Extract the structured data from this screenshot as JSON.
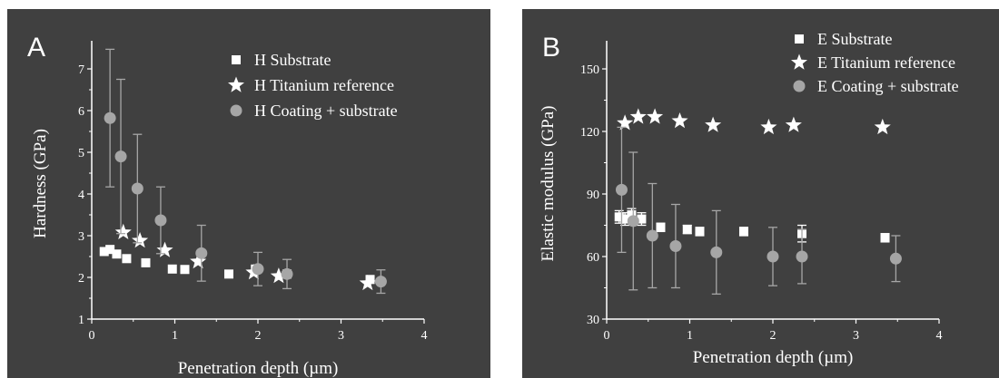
{
  "chart_data": [
    {
      "type": "scatter",
      "panel_label": "A",
      "xlabel": "Penetration depth (µm)",
      "ylabel": "Hardness (GPa)",
      "xlim": [
        0,
        4
      ],
      "ylim": [
        1,
        7.5
      ],
      "xticks": [
        0,
        1,
        2,
        3,
        4
      ],
      "yticks": [
        1,
        2,
        3,
        4,
        5,
        6,
        7
      ],
      "legend_position": "top-right",
      "grid": false,
      "colors": {
        "background": "#404040",
        "axes": "#ffffff",
        "substrate": "#ffffff",
        "titanium": "#ffffff",
        "coating": "#a6a6a6",
        "text": "#ffffff"
      },
      "series": [
        {
          "name": "H  Substrate",
          "marker": "square",
          "x": [
            0.15,
            0.22,
            0.3,
            0.42,
            0.65,
            0.97,
            1.12,
            1.65,
            1.97,
            2.35,
            3.35
          ],
          "y": [
            2.62,
            2.67,
            2.56,
            2.45,
            2.35,
            2.2,
            2.19,
            2.08,
            2.2,
            2.08,
            1.95
          ]
        },
        {
          "name": "H  Titanium reference",
          "marker": "star",
          "x": [
            0.38,
            0.58,
            0.88,
            1.28,
            1.95,
            2.25,
            3.32
          ],
          "y": [
            3.08,
            2.88,
            2.65,
            2.38,
            2.12,
            2.03,
            1.86
          ]
        },
        {
          "name": "H  Coating + substrate",
          "marker": "circle",
          "x": [
            0.22,
            0.35,
            0.55,
            0.83,
            1.32,
            2.0,
            2.35,
            3.48
          ],
          "y": [
            5.82,
            4.9,
            4.13,
            3.37,
            2.58,
            2.2,
            2.08,
            1.9
          ],
          "yerr": [
            1.65,
            1.85,
            1.3,
            0.8,
            0.67,
            0.4,
            0.35,
            0.28
          ]
        }
      ]
    },
    {
      "type": "scatter",
      "panel_label": "B",
      "xlabel": "Penetration depth (µm)",
      "ylabel": "Elastic modulus (GPa)",
      "xlim": [
        0,
        4
      ],
      "ylim": [
        30,
        160
      ],
      "xticks": [
        0,
        1,
        2,
        3,
        4
      ],
      "yticks": [
        30,
        60,
        90,
        120,
        150
      ],
      "legend_position": "top-right",
      "grid": false,
      "colors": {
        "background": "#404040",
        "axes": "#ffffff",
        "substrate": "#ffffff",
        "titanium": "#ffffff",
        "coating": "#a6a6a6",
        "text": "#ffffff"
      },
      "series": [
        {
          "name": "E Substrate",
          "marker": "square",
          "x": [
            0.15,
            0.22,
            0.3,
            0.42,
            0.65,
            0.97,
            1.12,
            1.65,
            2.35,
            3.35
          ],
          "y": [
            79,
            78,
            80,
            78,
            74,
            73,
            72,
            72,
            71,
            69
          ],
          "yerr": [
            3,
            3,
            3,
            3,
            2,
            2,
            2,
            2,
            4,
            2
          ]
        },
        {
          "name": "E Titanium reference",
          "marker": "star",
          "x": [
            0.22,
            0.38,
            0.58,
            0.88,
            1.28,
            1.95,
            2.25,
            3.32
          ],
          "y": [
            124,
            127,
            127,
            125,
            123,
            122,
            123,
            122
          ]
        },
        {
          "name": "E  Coating + substrate",
          "marker": "circle",
          "x": [
            0.18,
            0.32,
            0.55,
            0.83,
            1.32,
            2.0,
            2.35,
            3.48
          ],
          "y": [
            92,
            77,
            70,
            65,
            62,
            60,
            60,
            59
          ],
          "yerr": [
            30,
            33,
            25,
            20,
            20,
            14,
            13,
            11
          ]
        }
      ]
    }
  ]
}
